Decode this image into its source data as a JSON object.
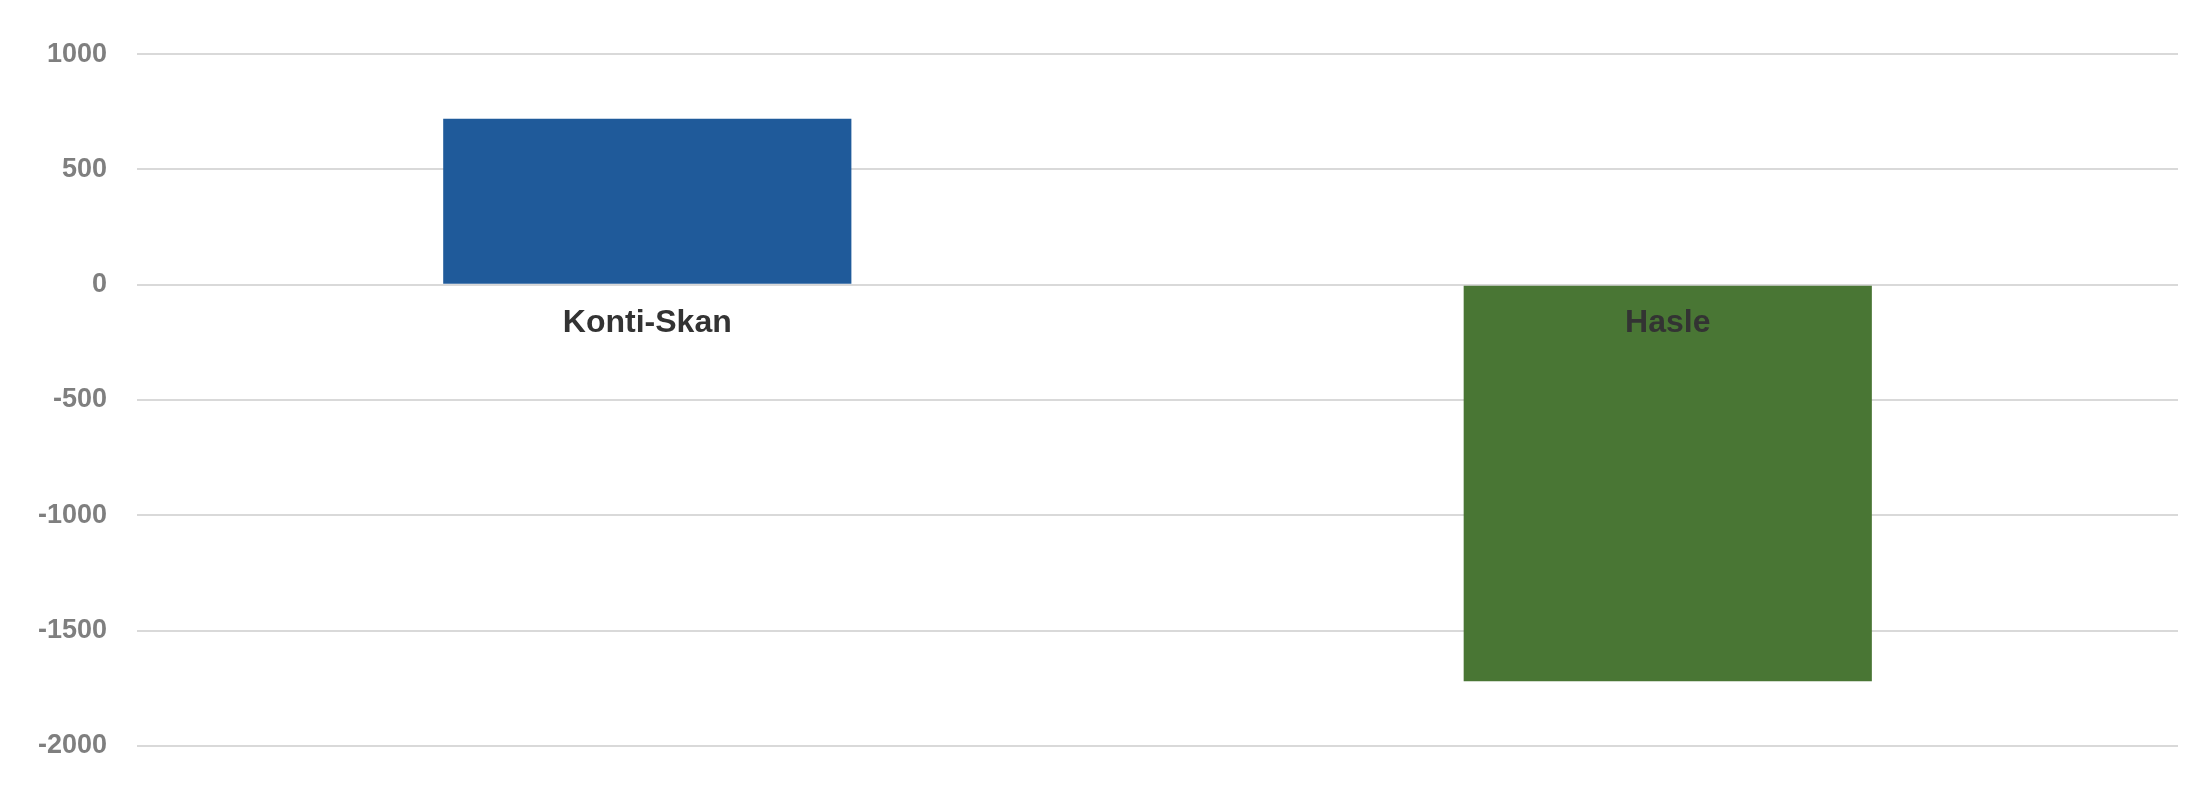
{
  "chart_data": {
    "type": "bar",
    "categories": [
      "Konti-Skan",
      "Hasle"
    ],
    "values": [
      720,
      -1720
    ],
    "colors": [
      "#1f5a9a",
      "#497634"
    ],
    "ylim": [
      -2000,
      1000
    ],
    "yticks": [
      -2000,
      -1500,
      -1000,
      -500,
      0,
      500,
      1000
    ],
    "grid": "y",
    "legend": false
  }
}
